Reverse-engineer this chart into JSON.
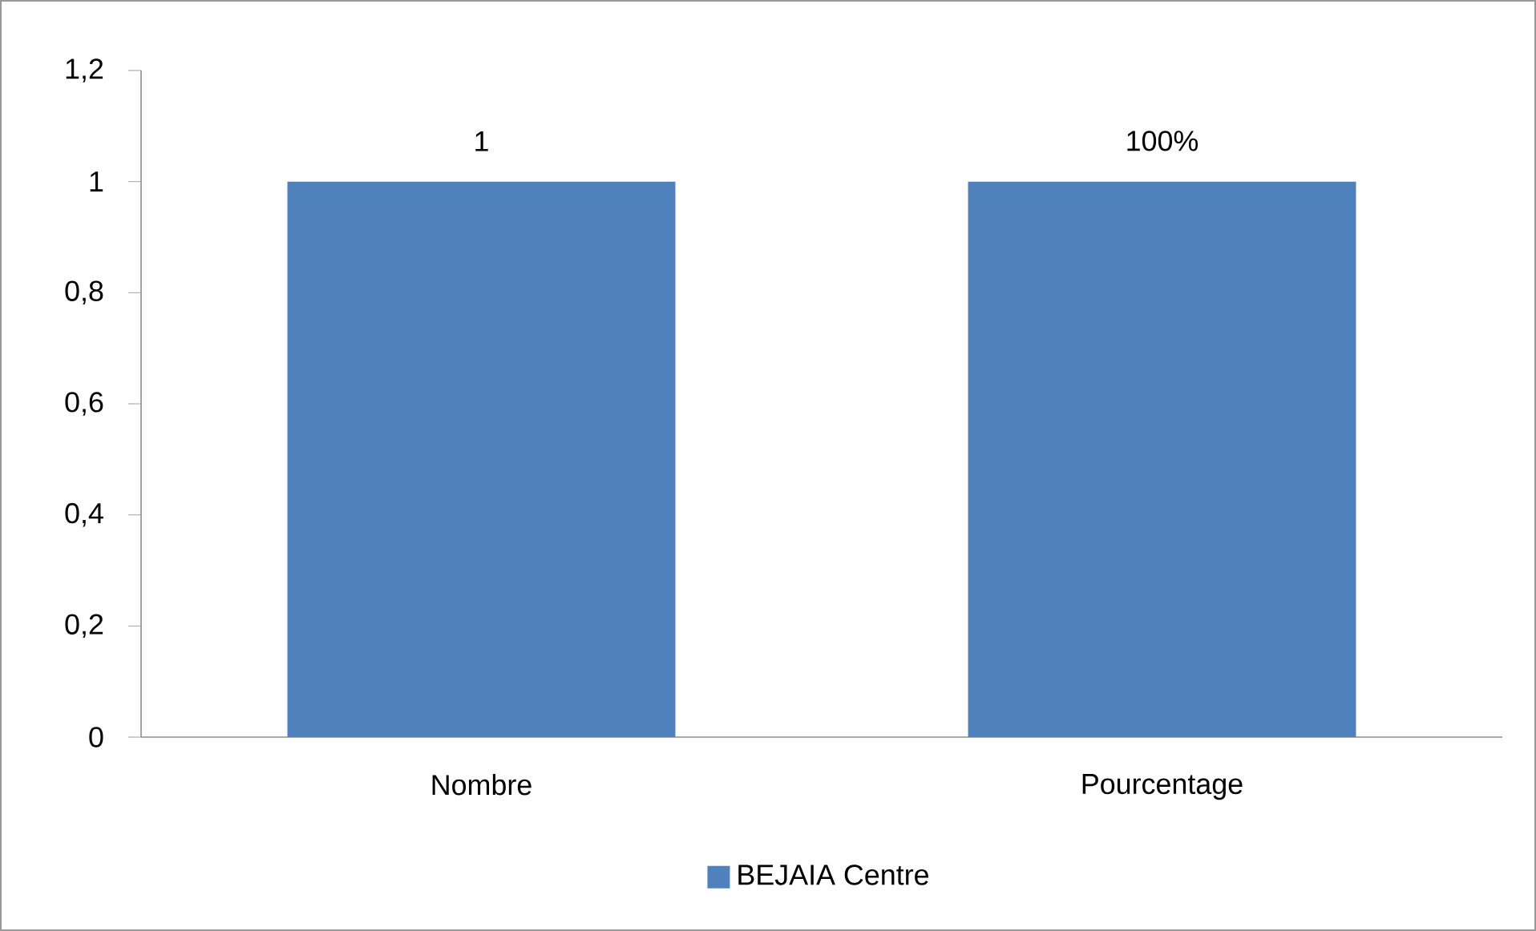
{
  "chart_data": {
    "type": "bar",
    "categories": [
      "Nombre",
      "Pourcentage"
    ],
    "series": [
      {
        "name": "BEJAIA Centre",
        "color": "#4f81bd",
        "values": [
          1,
          1
        ],
        "value_labels": [
          "1",
          "100%"
        ]
      }
    ],
    "ylim": [
      0,
      1.2
    ],
    "yticks": [
      0,
      {
        "value": 0.2,
        "label": "0,2"
      },
      {
        "value": 0.4,
        "label": "0,4"
      },
      {
        "value": 0.6,
        "label": "0,6"
      },
      {
        "value": 0.8,
        "label": "0,8"
      },
      1,
      {
        "value": 1.2,
        "label": "1,2"
      }
    ],
    "legend": "bottom"
  }
}
